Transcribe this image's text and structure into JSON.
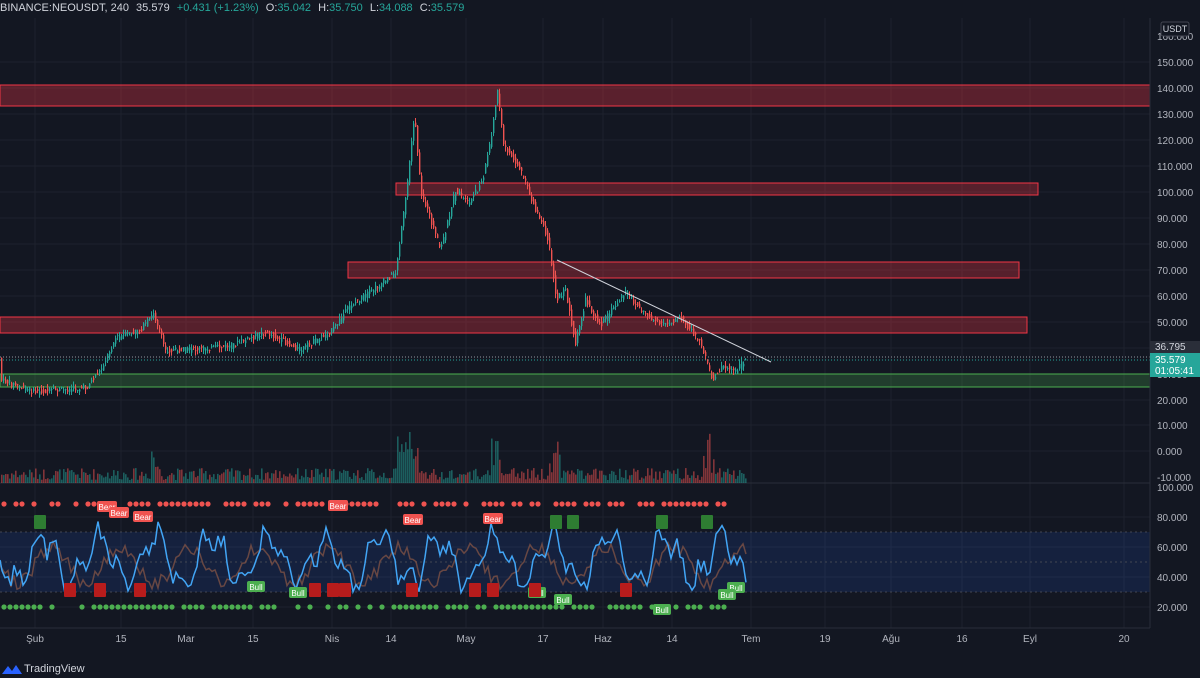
{
  "header": {
    "symbol": "BINANCE:NEOUSDT, 240",
    "last": "35.579",
    "change": "+0.431 (+1.23%)",
    "o_label": "O:",
    "o_value": "35.042",
    "h_label": "H:",
    "h_value": "35.750",
    "l_label": "L:",
    "l_value": "34.088",
    "c_label": "C:",
    "c_value": "35.579"
  },
  "colors": {
    "background": "#131722",
    "bull": "#26a69a",
    "bear": "#ef5350",
    "zone_red": "#f23645",
    "zone_green": "#4caf50",
    "rsi_line": "#2962ff"
  },
  "price_axis": {
    "unit": "USDT",
    "ticks": [
      "160.000",
      "150.000",
      "140.000",
      "130.000",
      "120.000",
      "110.000",
      "100.000",
      "90.000",
      "80.000",
      "70.000",
      "60.000",
      "50.000",
      "40.000",
      "30.000",
      "20.000"
    ],
    "line_label": "36.795",
    "current_price": "35.579",
    "countdown": "01:05:41"
  },
  "volume_axis": {
    "ticks": [
      "10.000",
      "0.000",
      "-10.000"
    ]
  },
  "oscillator_axis": {
    "ticks": [
      "100.000",
      "80.000",
      "60.000",
      "40.000",
      "20.000"
    ]
  },
  "time_axis": {
    "ticks": [
      "Şub",
      "15",
      "Mar",
      "15",
      "Nis",
      "14",
      "May",
      "17",
      "Haz",
      "14",
      "Tem",
      "19",
      "Ağu",
      "16",
      "Eyl",
      "20"
    ]
  },
  "signals": {
    "bear": [
      "Bear",
      "Bear",
      "Bear",
      "Bear",
      "Bear",
      "Bear"
    ],
    "bull": [
      "Bull",
      "Bull",
      "Bull",
      "Bull",
      "Bull",
      "Bull",
      "Bull"
    ]
  },
  "footer": {
    "brand": "TradingView",
    "logo_icon": "tradingview-logo-icon"
  }
}
